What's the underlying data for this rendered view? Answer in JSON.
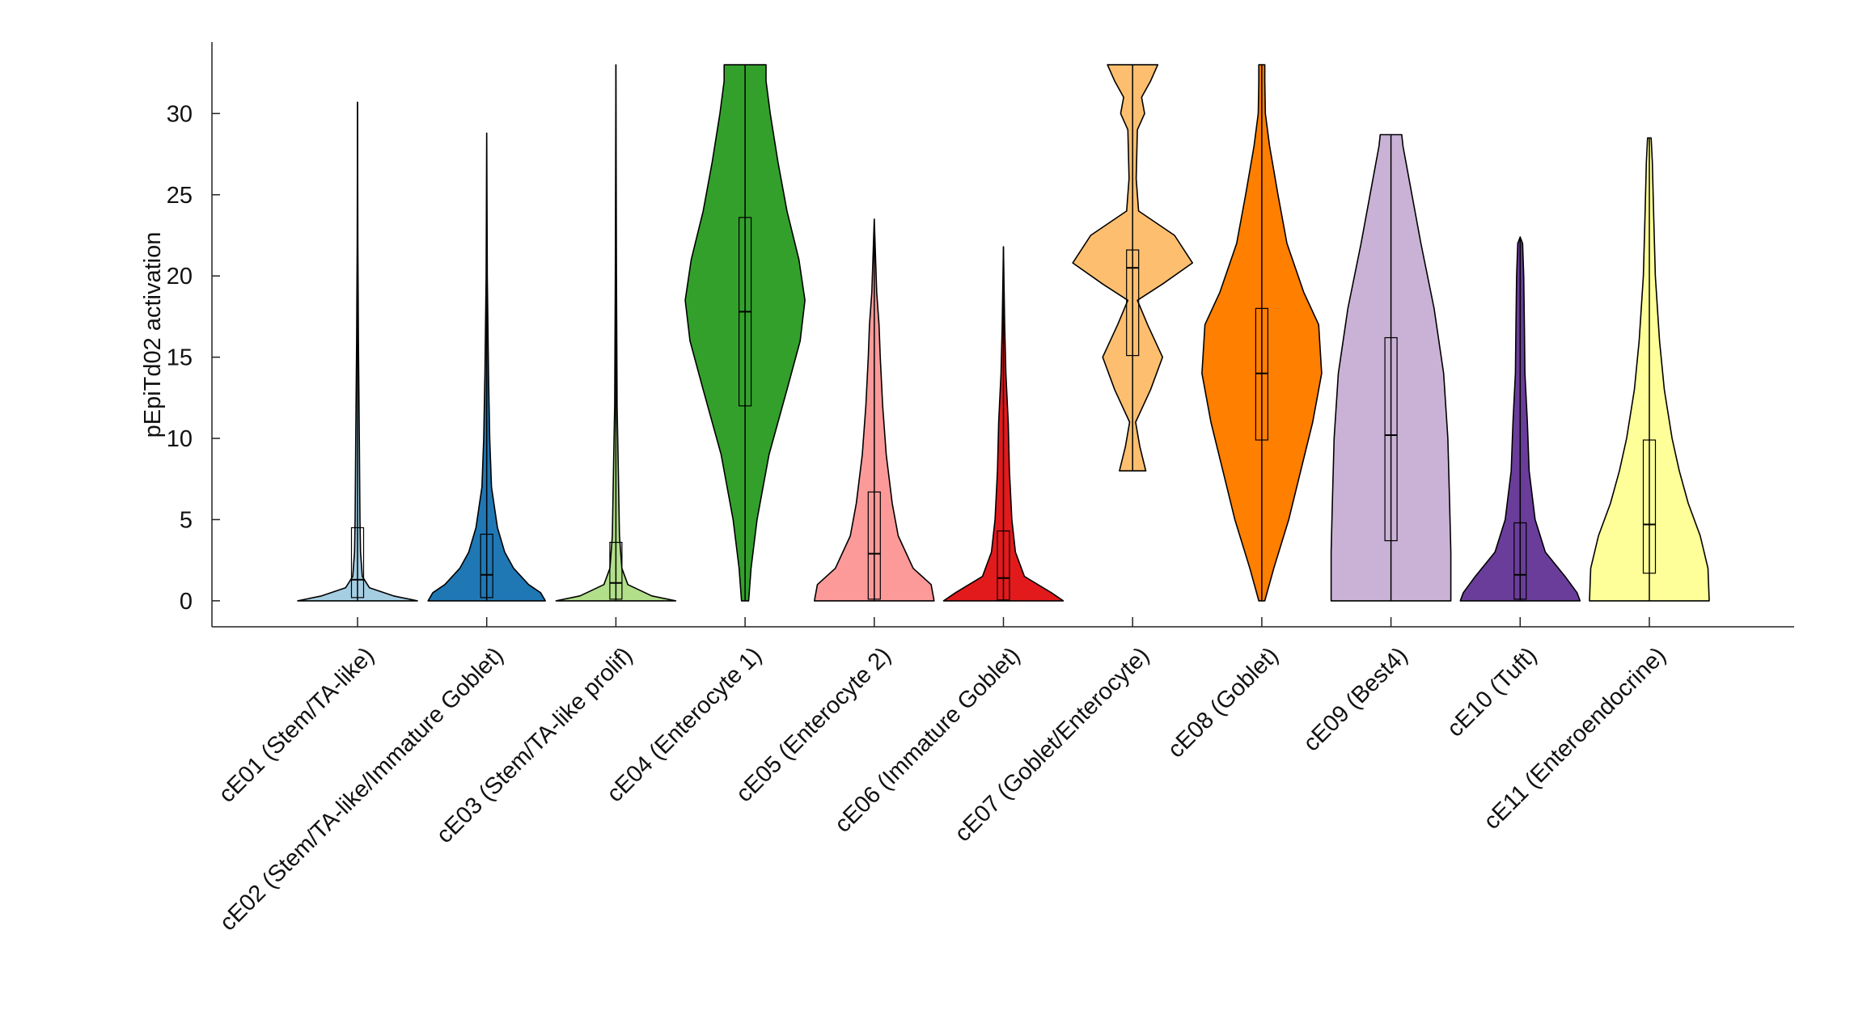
{
  "chart_data": {
    "type": "violin",
    "y_label": "pEpiTd02 activation",
    "ylim": [
      -1.6,
      34.4
    ],
    "yticks": [
      0,
      5,
      10,
      15,
      20,
      25,
      30
    ],
    "series": [
      {
        "name": "cE01 (Stem/TA-like)",
        "color": "#a6cee3",
        "stats": {
          "min": 0,
          "q1": 0.2,
          "median": 1.3,
          "q3": 4.5,
          "max": 30.7
        },
        "density": {
          "y": [
            0,
            0.3,
            0.8,
            1.5,
            3,
            5,
            10,
            16,
            22,
            30.7
          ],
          "width": [
            1.0,
            0.6,
            0.2,
            0.08,
            0.05,
            0.04,
            0.03,
            0.015,
            0.005,
            0
          ]
        }
      },
      {
        "name": "cE02 (Stem/TA-like/Immature Goblet)",
        "color": "#1f78b4",
        "stats": {
          "min": 0,
          "q1": 0.2,
          "median": 1.6,
          "q3": 4.1,
          "max": 28.8
        },
        "density": {
          "y": [
            0,
            0.5,
            1,
            2,
            3,
            4.5,
            7,
            10,
            14,
            20,
            28.8
          ],
          "width": [
            0.98,
            0.9,
            0.7,
            0.45,
            0.3,
            0.18,
            0.08,
            0.05,
            0.03,
            0.01,
            0
          ]
        }
      },
      {
        "name": "cE03 (Stem/TA-like prolif)",
        "color": "#b2df8a",
        "stats": {
          "min": 0,
          "q1": 0.1,
          "median": 1.1,
          "q3": 3.6,
          "max": 33
        },
        "density": {
          "y": [
            0,
            0.3,
            1,
            2,
            4,
            8,
            12,
            20,
            33
          ],
          "width": [
            1.0,
            0.6,
            0.2,
            0.1,
            0.06,
            0.04,
            0.02,
            0.01,
            0
          ]
        }
      },
      {
        "name": "cE04 (Enterocyte 1)",
        "color": "#33a02c",
        "stats": {
          "min": 0,
          "q1": 12,
          "median": 17.8,
          "q3": 23.6,
          "max": 33
        },
        "density": {
          "y": [
            0,
            2,
            5,
            9,
            13,
            16,
            18.5,
            21,
            24,
            27,
            30,
            32,
            33
          ],
          "width": [
            0.06,
            0.1,
            0.2,
            0.4,
            0.7,
            0.92,
            1.0,
            0.9,
            0.7,
            0.55,
            0.42,
            0.35,
            0.35
          ]
        }
      },
      {
        "name": "cE05 (Enterocyte 2)",
        "color": "#fb9a99",
        "stats": {
          "min": 0,
          "q1": 0.1,
          "median": 2.9,
          "q3": 6.7,
          "max": 23.5
        },
        "density": {
          "y": [
            0,
            1,
            2,
            4,
            6,
            9,
            12,
            15,
            17,
            19,
            23.5
          ],
          "width": [
            1.0,
            0.95,
            0.65,
            0.4,
            0.3,
            0.2,
            0.14,
            0.1,
            0.08,
            0.04,
            0
          ]
        }
      },
      {
        "name": "cE06 (Immature Goblet)",
        "color": "#e31a1c",
        "stats": {
          "min": 0,
          "q1": 0.05,
          "median": 1.4,
          "q3": 4.3,
          "max": 21.8
        },
        "density": {
          "y": [
            0,
            0.5,
            1.5,
            3,
            5,
            8,
            11,
            14,
            17,
            21.8
          ],
          "width": [
            1.0,
            0.8,
            0.35,
            0.2,
            0.14,
            0.1,
            0.08,
            0.04,
            0.02,
            0
          ]
        }
      },
      {
        "name": "cE07 (Goblet/Enterocyte)",
        "color": "#fdbf6f",
        "stats": {
          "min": 8,
          "q1": 15.1,
          "median": 20.5,
          "q3": 21.6,
          "max": 33
        },
        "density": {
          "y": [
            8,
            9.5,
            11,
            13,
            15,
            17,
            18.5,
            19.5,
            20.8,
            22.5,
            24,
            26,
            29,
            30,
            31,
            32,
            33
          ],
          "width": [
            0.22,
            0.12,
            0.05,
            0.3,
            0.5,
            0.25,
            0.08,
            0.5,
            1.0,
            0.7,
            0.1,
            0.06,
            0.08,
            0.2,
            0.15,
            0.3,
            0.42
          ]
        }
      },
      {
        "name": "cE08 (Goblet)",
        "color": "#ff7f00",
        "stats": {
          "min": 0,
          "q1": 9.9,
          "median": 14,
          "q3": 18,
          "max": 33
        },
        "density": {
          "y": [
            0,
            2,
            5,
            8,
            11,
            14,
            17,
            19,
            22,
            25,
            28,
            30,
            32,
            33
          ],
          "width": [
            0.05,
            0.2,
            0.45,
            0.65,
            0.85,
            1.0,
            0.95,
            0.7,
            0.42,
            0.27,
            0.13,
            0.06,
            0.05,
            0.05
          ]
        }
      },
      {
        "name": "cE09 (Best4)",
        "color": "#cab2d6",
        "stats": {
          "min": 0,
          "q1": 3.7,
          "median": 10.2,
          "q3": 16.2,
          "max": 28.7
        },
        "density": {
          "y": [
            0,
            3,
            6,
            10,
            14,
            18,
            22,
            25,
            28,
            28.7
          ],
          "width": [
            1.0,
            1.0,
            0.98,
            0.95,
            0.88,
            0.72,
            0.5,
            0.35,
            0.2,
            0.18
          ]
        }
      },
      {
        "name": "cE10 (Tuft)",
        "color": "#6a3d9a",
        "stats": {
          "min": 0,
          "q1": 0.1,
          "median": 1.6,
          "q3": 4.8,
          "max": 22.4
        },
        "density": {
          "y": [
            0,
            0.5,
            1.5,
            3,
            5,
            8,
            11,
            14,
            17,
            20,
            22,
            22.4
          ],
          "width": [
            1.0,
            0.95,
            0.75,
            0.42,
            0.25,
            0.15,
            0.12,
            0.08,
            0.07,
            0.06,
            0.04,
            0
          ]
        }
      },
      {
        "name": "cE11 (Enteroendocrine)",
        "color": "#ffff99",
        "stats": {
          "min": 0,
          "q1": 1.7,
          "median": 4.7,
          "q3": 9.9,
          "max": 28.5
        },
        "density": {
          "y": [
            0,
            2,
            4,
            6,
            8,
            10,
            13,
            16,
            20,
            24,
            27,
            28.5
          ],
          "width": [
            1.0,
            0.98,
            0.85,
            0.65,
            0.5,
            0.38,
            0.25,
            0.17,
            0.1,
            0.07,
            0.05,
            0.03
          ]
        }
      }
    ]
  }
}
